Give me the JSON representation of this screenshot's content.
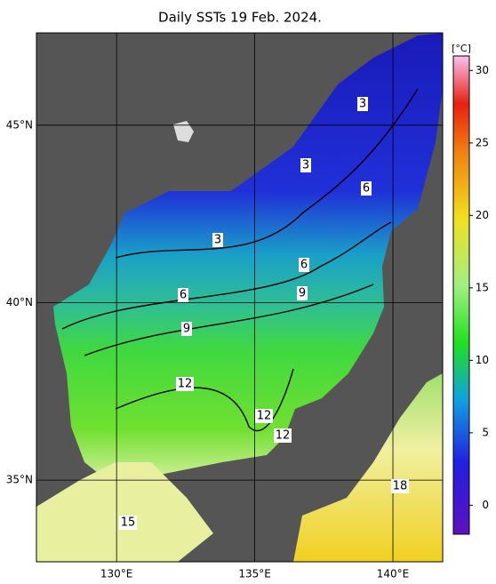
{
  "map": {
    "title": "Daily SSTs 19 Feb. 2024.",
    "lon_lim": [
      127.1,
      141.8
    ],
    "lat_lim": [
      32.7,
      47.6
    ],
    "lon_ticks": [
      {
        "value": 130,
        "label": "130°E"
      },
      {
        "value": 135,
        "label": "135°E"
      },
      {
        "value": 140,
        "label": "140°E"
      }
    ],
    "lat_ticks": [
      {
        "value": 35,
        "label": "35°N"
      },
      {
        "value": 40,
        "label": "40°N"
      },
      {
        "value": 45,
        "label": "45°N"
      }
    ],
    "colorbar": {
      "unit": "[°C]",
      "lim": [
        -2,
        31
      ],
      "ticks": [
        0,
        5,
        10,
        15,
        20,
        25,
        30
      ]
    },
    "contour_labels": [
      3,
      3,
      3,
      6,
      6,
      6,
      9,
      9,
      12,
      12,
      12,
      15,
      18
    ]
  }
}
